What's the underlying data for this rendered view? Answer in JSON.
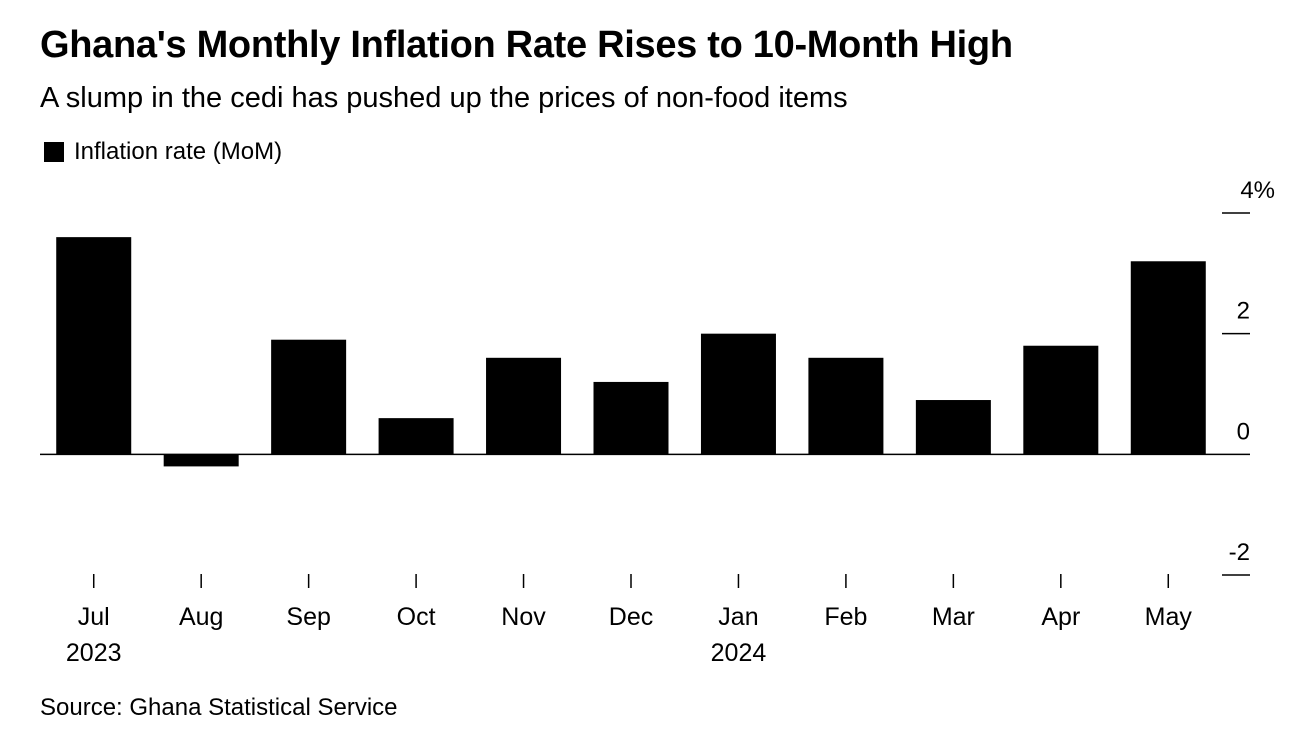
{
  "title": "Ghana's Monthly Inflation Rate Rises to 10-Month High",
  "subtitle": "A slump in the cedi has pushed up the prices of non-food items",
  "source": "Source: Ghana Statistical Service",
  "chart_data": {
    "type": "bar",
    "categories": [
      "Jul",
      "Aug",
      "Sep",
      "Oct",
      "Nov",
      "Dec",
      "Jan",
      "Feb",
      "Mar",
      "Apr",
      "May"
    ],
    "year_labels": [
      "2023",
      "",
      "",
      "",
      "",
      "",
      "2024",
      "",
      "",
      "",
      ""
    ],
    "series": [
      {
        "name": "Inflation rate (MoM)",
        "color": "#000000",
        "values": [
          3.6,
          -0.2,
          1.9,
          0.6,
          1.6,
          1.2,
          2.0,
          1.6,
          0.9,
          1.8,
          3.2
        ]
      }
    ],
    "ylim": [
      -2,
      4
    ],
    "yticks": [
      4,
      2,
      0,
      -2
    ],
    "ytick_labels": [
      "4%",
      "2",
      "0",
      "-2"
    ],
    "legend_position": "top-left",
    "grid": false
  }
}
